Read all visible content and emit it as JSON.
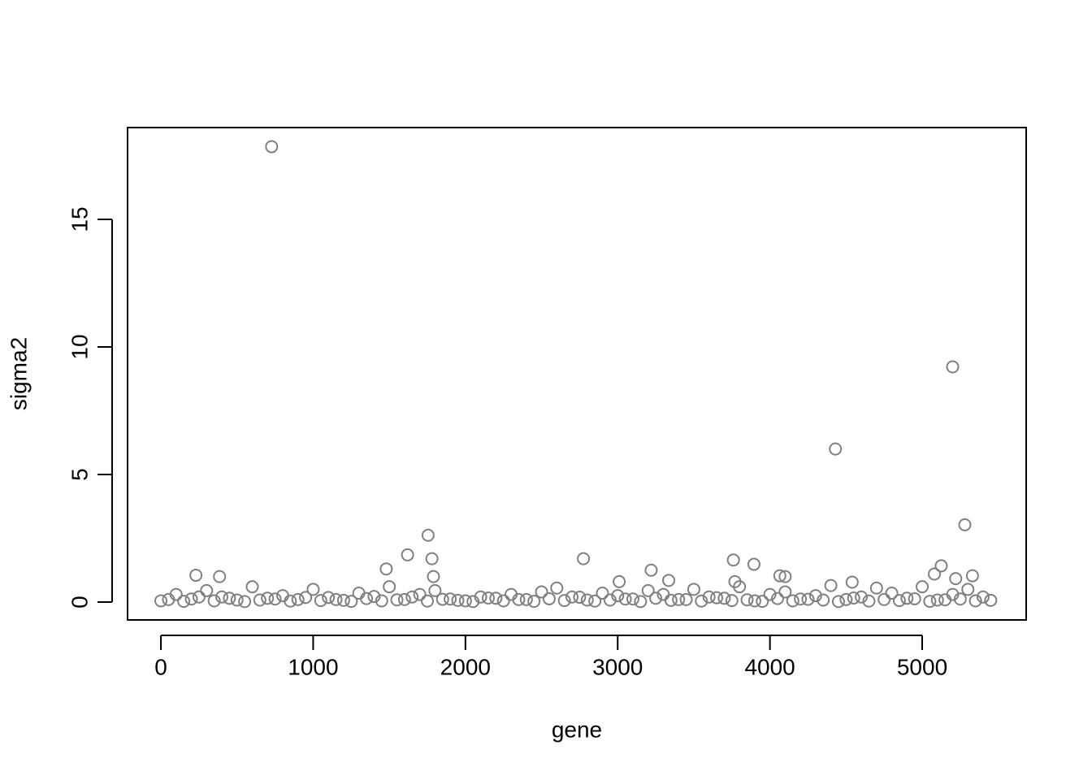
{
  "chart_data": {
    "type": "scatter",
    "x_label": "gene",
    "y_label": "sigma2",
    "xlim": [
      -219,
      5683
    ],
    "ylim": [
      -0.7,
      18.6
    ],
    "xticks": [
      0,
      1000,
      2000,
      3000,
      4000,
      5000
    ],
    "yticks": [
      0,
      5,
      10,
      15
    ],
    "color": "#808080",
    "x": [
      0,
      50,
      100,
      150,
      200,
      250,
      300,
      350,
      400,
      450,
      500,
      550,
      600,
      650,
      700,
      750,
      800,
      850,
      900,
      950,
      1000,
      1050,
      1100,
      1150,
      1200,
      1250,
      1300,
      1350,
      1400,
      1450,
      1500,
      1550,
      1600,
      1650,
      1700,
      1750,
      1800,
      1850,
      1900,
      1950,
      2000,
      2050,
      2100,
      2150,
      2200,
      2250,
      2300,
      2350,
      2400,
      2450,
      2500,
      2550,
      2600,
      2650,
      2700,
      2750,
      2800,
      2850,
      2900,
      2950,
      3000,
      3050,
      3100,
      3150,
      3200,
      3250,
      3300,
      3350,
      3400,
      3450,
      3500,
      3550,
      3600,
      3650,
      3700,
      3750,
      3800,
      3850,
      3900,
      3950,
      4000,
      4050,
      4100,
      4150,
      4200,
      4250,
      4300,
      4350,
      4400,
      4450,
      4500,
      4550,
      4600,
      4650,
      4700,
      4750,
      4800,
      4850,
      4900,
      4950,
      5000,
      5050,
      5100,
      5150,
      5200,
      5250,
      5300,
      5350,
      5400,
      5450,
      727,
      5200,
      4430,
      5280,
      1755,
      1620,
      1780,
      2775,
      3760,
      3895,
      5125,
      1480,
      3220,
      5080,
      230,
      385,
      4065,
      4100,
      5330,
      1790,
      5220,
      3335,
      3010,
      3770,
      4540
    ],
    "values": [
      0.05,
      0.1,
      0.3,
      0.03,
      0.12,
      0.2,
      0.45,
      0.05,
      0.2,
      0.15,
      0.08,
      0.02,
      0.6,
      0.08,
      0.15,
      0.12,
      0.25,
      0.04,
      0.1,
      0.18,
      0.5,
      0.06,
      0.18,
      0.1,
      0.07,
      0.03,
      0.35,
      0.14,
      0.22,
      0.05,
      0.6,
      0.09,
      0.1,
      0.2,
      0.3,
      0.04,
      0.45,
      0.11,
      0.12,
      0.07,
      0.05,
      0.02,
      0.2,
      0.16,
      0.15,
      0.05,
      0.3,
      0.1,
      0.1,
      0.03,
      0.4,
      0.13,
      0.55,
      0.06,
      0.2,
      0.19,
      0.08,
      0.04,
      0.35,
      0.08,
      0.25,
      0.12,
      0.12,
      0.02,
      0.45,
      0.15,
      0.3,
      0.07,
      0.1,
      0.1,
      0.5,
      0.04,
      0.2,
      0.17,
      0.15,
      0.06,
      0.6,
      0.09,
      0.05,
      0.03,
      0.3,
      0.14,
      0.4,
      0.05,
      0.12,
      0.11,
      0.25,
      0.08,
      0.65,
      0.02,
      0.1,
      0.16,
      0.2,
      0.04,
      0.55,
      0.1,
      0.35,
      0.06,
      0.15,
      0.13,
      0.6,
      0.03,
      0.08,
      0.09,
      0.3,
      0.12,
      0.5,
      0.05,
      0.2,
      0.07,
      17.85,
      9.22,
      6.0,
      3.03,
      2.62,
      1.85,
      1.7,
      1.7,
      1.65,
      1.48,
      1.42,
      1.3,
      1.25,
      1.1,
      1.05,
      1.0,
      1.03,
      1.0,
      1.03,
      1.0,
      0.92,
      0.85,
      0.8,
      0.8,
      0.78
    ]
  }
}
